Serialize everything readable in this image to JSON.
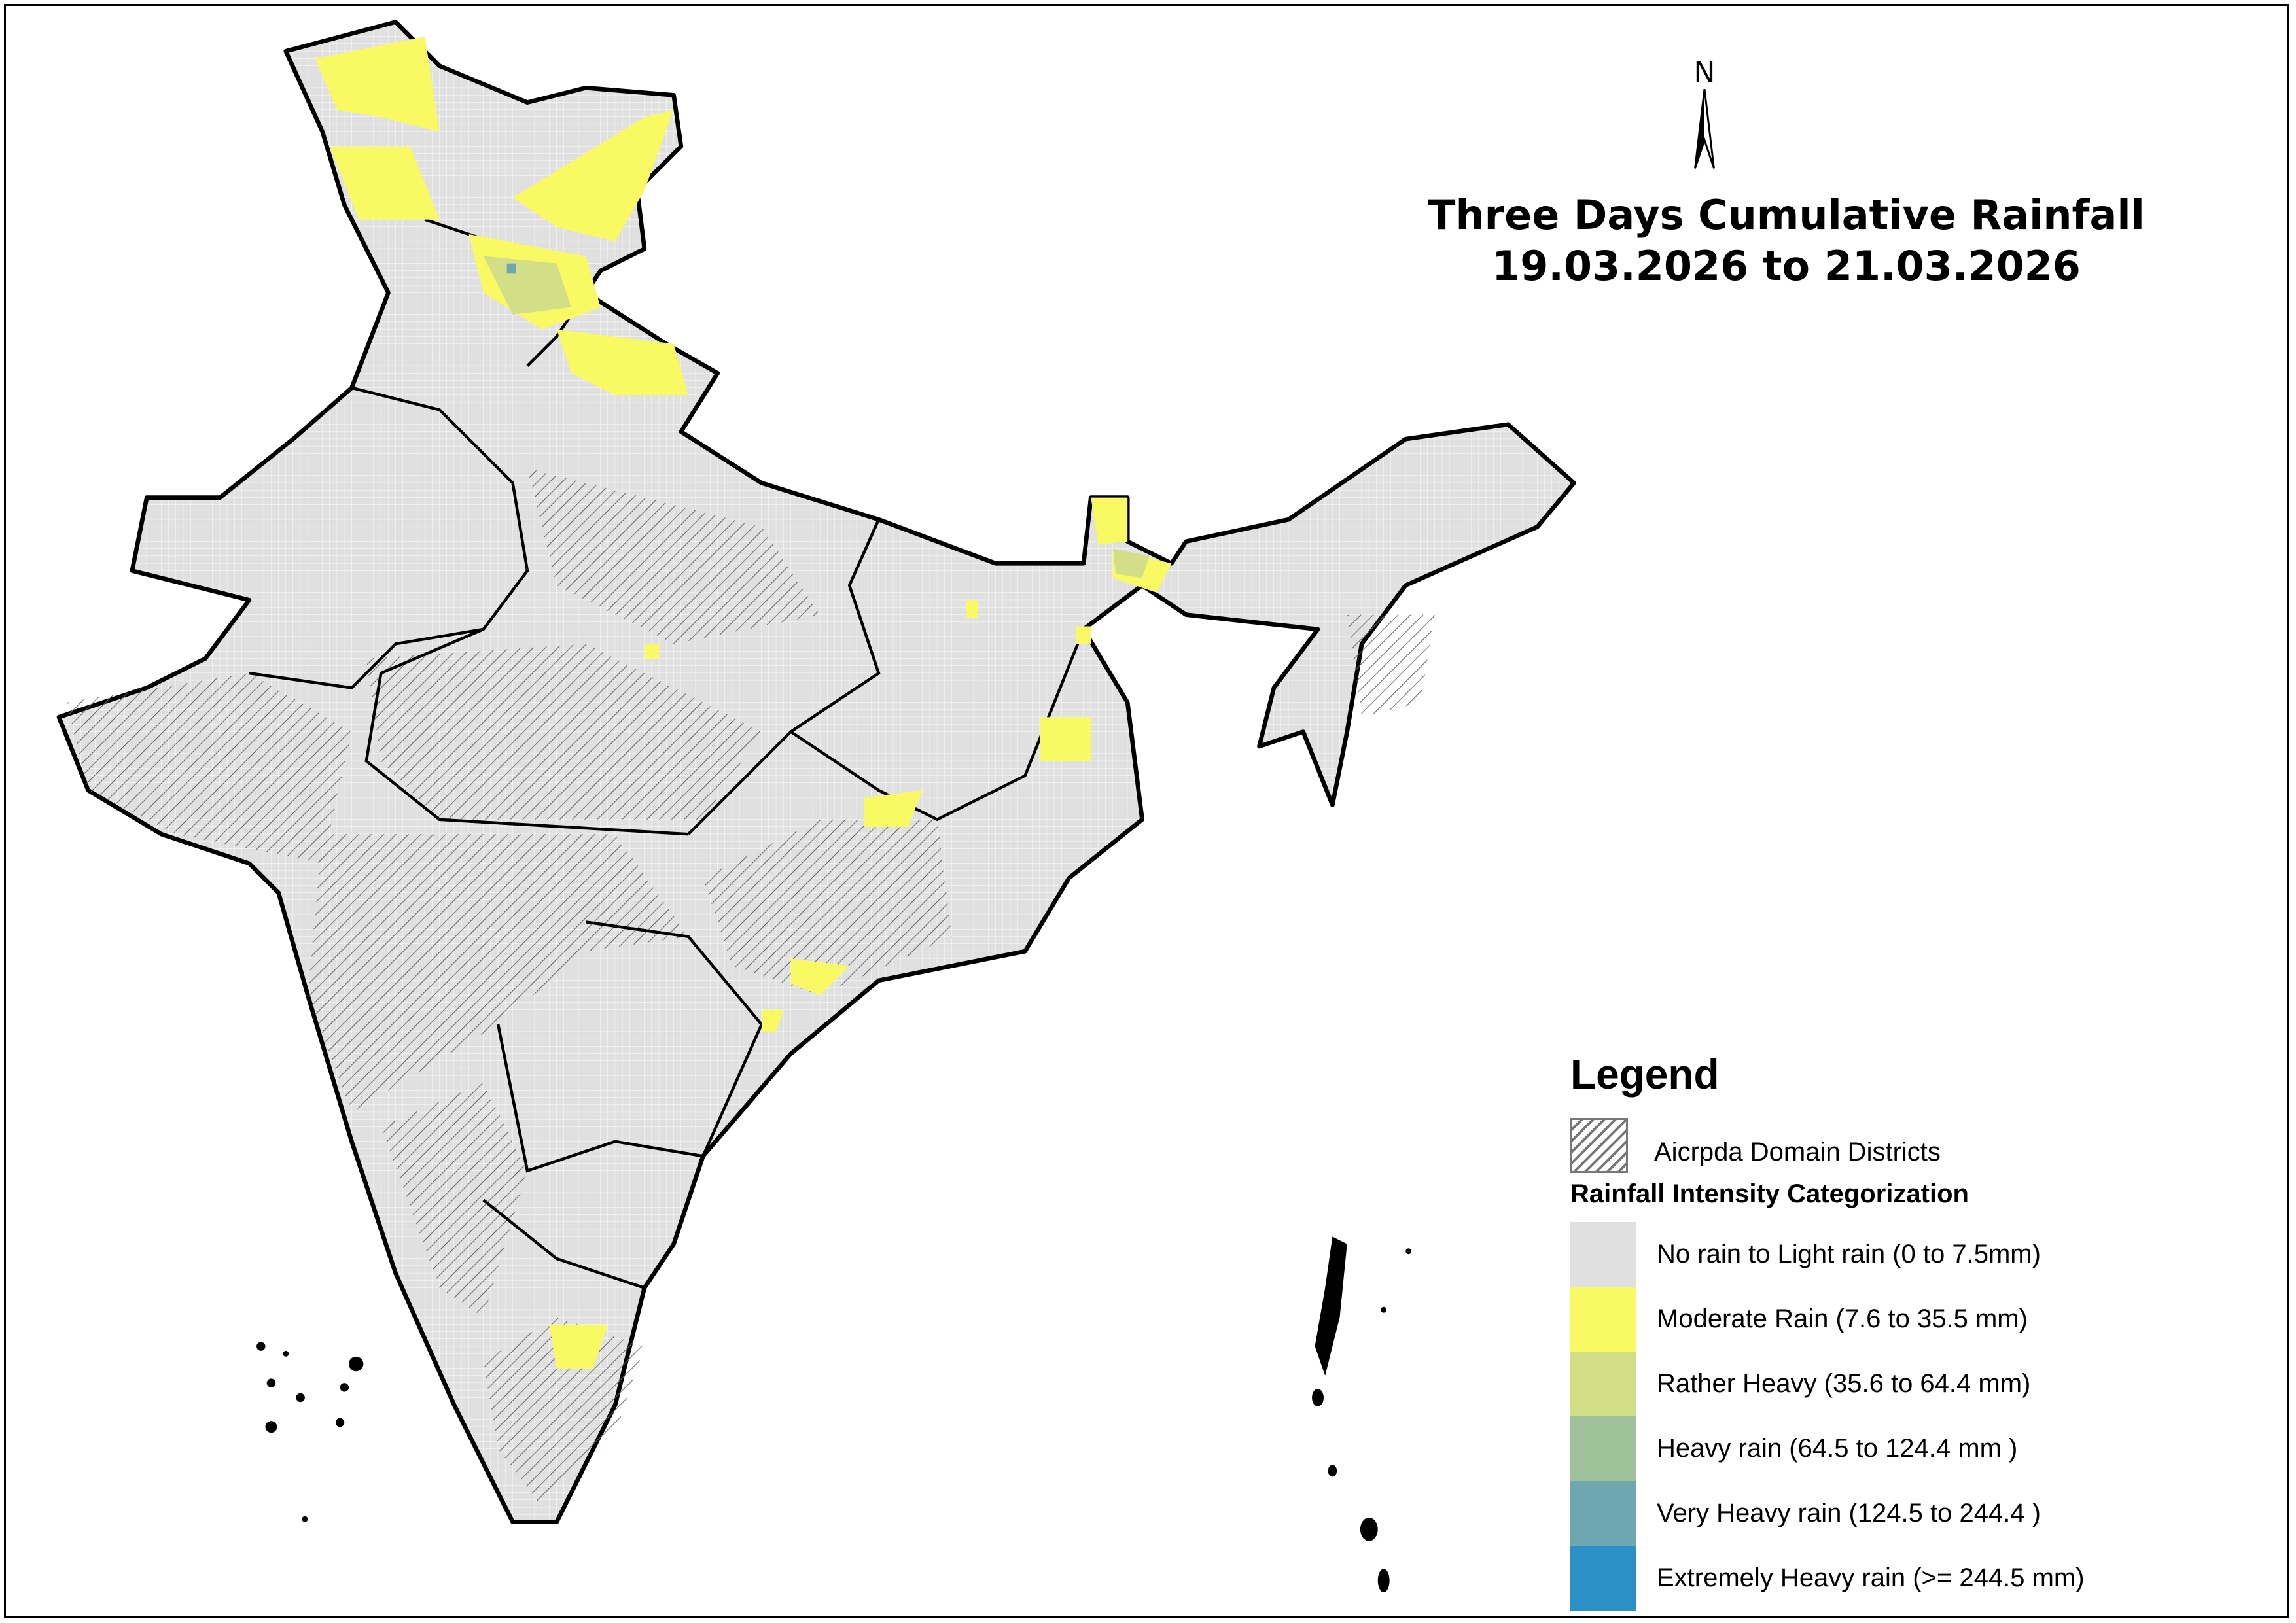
{
  "title": {
    "line1": "Three Days Cumulative Rainfall",
    "line2": "19.03.2026 to 21.03.2026"
  },
  "north_arrow": {
    "label": "N",
    "icon": "north-arrow-icon"
  },
  "legend": {
    "heading": "Legend",
    "hatch_label": "Aicrpda Domain Districts",
    "category_heading": "Rainfall Intensity Categorization",
    "categories": [
      {
        "label": "No rain to Light rain (0 to 7.5mm)",
        "color": "#e0e0e0"
      },
      {
        "label": "Moderate Rain (7.6 to 35.5 mm)",
        "color": "#f9f964"
      },
      {
        "label": "Rather Heavy (35.6 to 64.4 mm)",
        "color": "#d2df86"
      },
      {
        "label": "Heavy rain (64.5 to 124.4 mm )",
        "color": "#a0c29a"
      },
      {
        "label": "Very Heavy rain (124.5 to 244.4 )",
        "color": "#6ea7b0"
      },
      {
        "label": "Extremely Heavy rain  (>= 244.5 mm)",
        "color": "#2b90c6"
      }
    ]
  }
}
